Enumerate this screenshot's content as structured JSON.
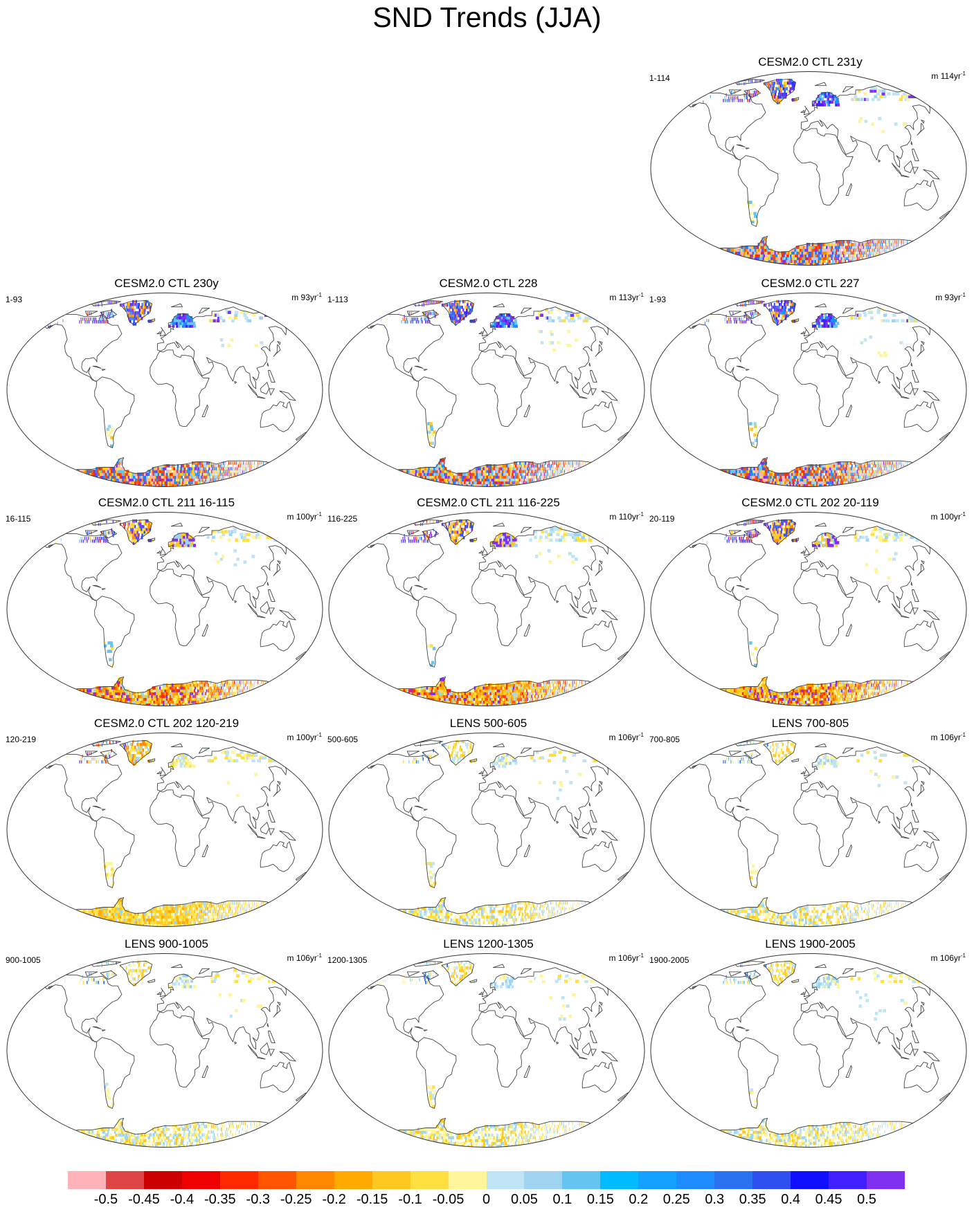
{
  "title": "SND Trends (JJA)",
  "panels": [
    {
      "title": "CESM2.0 CTL 231y",
      "period": "1-114",
      "units": "m 114yr",
      "exp": "-1",
      "style": "strong"
    },
    {
      "title": "CESM2.0 CTL 230y",
      "period": "1-93",
      "units": "m 93yr",
      "exp": "-1",
      "style": "strong"
    },
    {
      "title": "CESM2.0 CTL 228",
      "period": "1-113",
      "units": "m 113yr",
      "exp": "-1",
      "style": "strong"
    },
    {
      "title": "CESM2.0 CTL 227",
      "period": "1-93",
      "units": "m 93yr",
      "exp": "-1",
      "style": "strong"
    },
    {
      "title": "CESM2.0 CTL 211 16-115",
      "period": "16-115",
      "units": "m 100yr",
      "exp": "-1",
      "style": "warm"
    },
    {
      "title": "CESM2.0 CTL 211 116-225",
      "period": "116-225",
      "units": "m 110yr",
      "exp": "-1",
      "style": "warm"
    },
    {
      "title": "CESM2.0 CTL 202 20-119",
      "period": "20-119",
      "units": "m 100yr",
      "exp": "-1",
      "style": "warm"
    },
    {
      "title": "CESM2.0 CTL 202 120-219",
      "period": "120-219",
      "units": "m 100yr",
      "exp": "-1",
      "style": "yellow"
    },
    {
      "title": "LENS 500-605",
      "period": "500-605",
      "units": "m 106yr",
      "exp": "-1",
      "style": "weak"
    },
    {
      "title": "LENS 700-805",
      "period": "700-805",
      "units": "m 106yr",
      "exp": "-1",
      "style": "weak"
    },
    {
      "title": "LENS 900-1005",
      "period": "900-1005",
      "units": "m 106yr",
      "exp": "-1",
      "style": "weak"
    },
    {
      "title": "LENS 1200-1305",
      "period": "1200-1305",
      "units": "m 106yr",
      "exp": "-1",
      "style": "weak"
    },
    {
      "title": "LENS 1900-2005",
      "period": "1900-2005",
      "units": "m 106yr",
      "exp": "-1",
      "style": "weak"
    }
  ],
  "colorbar": {
    "labels": [
      "-0.5",
      "-0.45",
      "-0.4",
      "-0.35",
      "-0.3",
      "-0.25",
      "-0.2",
      "-0.15",
      "-0.1",
      "-0.05",
      "0",
      "0.05",
      "0.1",
      "0.15",
      "0.2",
      "0.25",
      "0.3",
      "0.35",
      "0.4",
      "0.45",
      "0.5"
    ],
    "colors": [
      "#ffb3b8",
      "#dd4444",
      "#cc0000",
      "#ee0000",
      "#ff2a00",
      "#ff5500",
      "#ff8800",
      "#ffaa00",
      "#ffc820",
      "#ffe040",
      "#fff59a",
      "#bfe4f5",
      "#9fd4f0",
      "#66c4f0",
      "#00bbff",
      "#14a0ff",
      "#1e8cff",
      "#2a72f0",
      "#2e50ee",
      "#1010ff",
      "#4020ff",
      "#8030f0"
    ]
  }
}
